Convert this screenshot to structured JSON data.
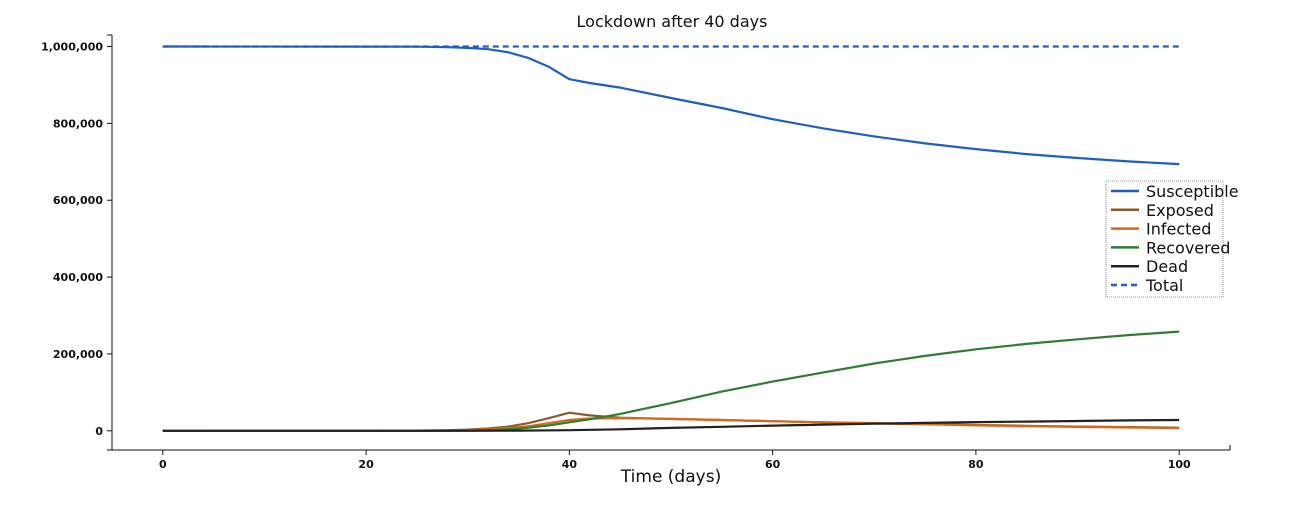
{
  "chart_data": {
    "type": "line",
    "title": "Lockdown after 40 days",
    "xlabel": "Time (days)",
    "ylabel": "",
    "xlim": [
      -5,
      105
    ],
    "ylim": [
      -50000,
      1030000
    ],
    "x_ticks": [
      0,
      20,
      40,
      60,
      80,
      100
    ],
    "x_tick_labels": [
      "0",
      "20",
      "40",
      "60",
      "80",
      "100"
    ],
    "y_ticks": [
      0,
      200000,
      400000,
      600000,
      800000,
      1000000
    ],
    "y_tick_labels": [
      "0",
      "200,000",
      "400,000",
      "600,000",
      "800,000",
      "1,000,000"
    ],
    "grid": false,
    "legend_position": "right",
    "series": [
      {
        "name": "Susceptible",
        "color": "#1f5fbf",
        "dash": "solid",
        "x": [
          0,
          20,
          25,
          28,
          30,
          32,
          34,
          36,
          38,
          40,
          42,
          45,
          50,
          55,
          60,
          65,
          70,
          75,
          80,
          85,
          90,
          95,
          100
        ],
        "y": [
          1000000,
          999900,
          999500,
          998500,
          996500,
          993000,
          985000,
          970000,
          947000,
          915000,
          905000,
          893000,
          866000,
          840000,
          811000,
          787000,
          766000,
          748000,
          733000,
          720000,
          710000,
          701000,
          694000
        ]
      },
      {
        "name": "Exposed",
        "color": "#8b5a2b",
        "dash": "solid",
        "x": [
          0,
          20,
          25,
          28,
          30,
          32,
          34,
          36,
          38,
          40,
          42,
          45,
          50,
          55,
          60,
          65,
          70,
          75,
          80,
          85,
          90,
          95,
          100
        ],
        "y": [
          0,
          100,
          500,
          1500,
          3000,
          6000,
          11000,
          20000,
          33000,
          47000,
          40000,
          34000,
          31000,
          28000,
          25000,
          22000,
          20000,
          18000,
          15000,
          13000,
          11000,
          9500,
          8000
        ]
      },
      {
        "name": "Infected",
        "color": "#d2691e",
        "dash": "solid",
        "x": [
          0,
          20,
          25,
          28,
          30,
          32,
          34,
          36,
          38,
          40,
          42,
          45,
          50,
          55,
          60,
          65,
          70,
          75,
          80,
          85,
          90,
          95,
          100
        ],
        "y": [
          0,
          50,
          200,
          600,
          1500,
          3500,
          7000,
          12000,
          20000,
          28000,
          32000,
          33000,
          31000,
          28000,
          25000,
          22000,
          19000,
          17000,
          14000,
          12000,
          10000,
          8500,
          7000
        ]
      },
      {
        "name": "Recovered",
        "color": "#2e7d32",
        "dash": "solid",
        "x": [
          0,
          20,
          25,
          28,
          30,
          32,
          34,
          36,
          38,
          40,
          42,
          45,
          50,
          55,
          60,
          65,
          70,
          75,
          80,
          85,
          90,
          95,
          100
        ],
        "y": [
          0,
          0,
          100,
          300,
          800,
          1800,
          4000,
          8000,
          14000,
          22000,
          30000,
          44000,
          72000,
          102000,
          128000,
          152000,
          175000,
          195000,
          212000,
          226000,
          238000,
          249000,
          258000
        ]
      },
      {
        "name": "Dead",
        "color": "#222222",
        "dash": "solid",
        "x": [
          0,
          20,
          25,
          30,
          35,
          40,
          45,
          50,
          55,
          60,
          65,
          70,
          75,
          80,
          85,
          90,
          95,
          100
        ],
        "y": [
          0,
          0,
          10,
          80,
          400,
          1500,
          4000,
          7500,
          10500,
          13500,
          16000,
          18500,
          20500,
          22500,
          24000,
          25500,
          27000,
          28000
        ]
      },
      {
        "name": "Total",
        "color": "#1f5fbf",
        "dash": "dashed",
        "x": [
          0,
          100
        ],
        "y": [
          1000000,
          1000000
        ]
      }
    ]
  }
}
